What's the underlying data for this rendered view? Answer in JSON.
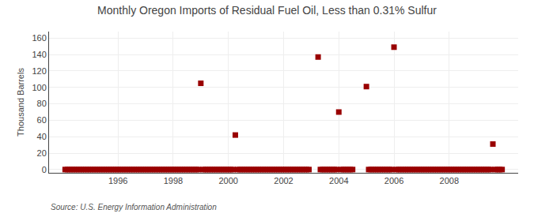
{
  "chart_data": {
    "type": "scatter",
    "title": "Monthly Oregon Imports of Residual Fuel Oil, Less than 0.31% Sulfur",
    "ylabel": "Thousand Barrels",
    "annotations": [
      "Source: U.S. Energy Information Administration"
    ],
    "color": "#990000",
    "marker": "square",
    "grid": true,
    "xlim": [
      1993.5,
      2010.5
    ],
    "ylim": [
      -4,
      168
    ],
    "xticks": [
      1996,
      1998,
      2000,
      2002,
      2004,
      2006,
      2008
    ],
    "yticks": [
      0,
      20,
      40,
      60,
      80,
      100,
      120,
      140,
      160
    ],
    "x": [
      1994.083,
      1994.167,
      1994.25,
      1994.333,
      1994.417,
      1994.5,
      1994.583,
      1994.667,
      1994.75,
      1994.833,
      1994.917,
      1995.0,
      1995.083,
      1995.167,
      1995.25,
      1995.333,
      1995.417,
      1995.5,
      1995.583,
      1995.667,
      1995.75,
      1995.833,
      1995.917,
      1996.0,
      1996.083,
      1996.167,
      1996.25,
      1996.333,
      1996.417,
      1996.5,
      1996.583,
      1996.667,
      1996.75,
      1996.833,
      1996.917,
      1997.0,
      1997.083,
      1997.167,
      1997.25,
      1997.333,
      1997.417,
      1997.5,
      1997.583,
      1997.667,
      1997.75,
      1997.833,
      1997.917,
      1998.0,
      1998.083,
      1998.167,
      1998.25,
      1998.333,
      1998.417,
      1998.5,
      1998.583,
      1998.667,
      1998.75,
      1998.833,
      1998.917,
      1999.0,
      1999.083,
      1999.167,
      1999.25,
      1999.333,
      1999.417,
      1999.5,
      1999.583,
      1999.667,
      1999.75,
      1999.833,
      1999.917,
      2000.0,
      2000.083,
      2000.167,
      2000.25,
      2000.333,
      2000.417,
      2000.5,
      2000.583,
      2000.667,
      2000.75,
      2000.833,
      2000.917,
      2001.0,
      2001.083,
      2001.167,
      2001.25,
      2001.333,
      2001.417,
      2001.5,
      2001.583,
      2001.667,
      2001.75,
      2001.833,
      2001.917,
      2002.0,
      2002.083,
      2002.167,
      2002.25,
      2002.333,
      2002.417,
      2002.5,
      2002.583,
      2002.667,
      2002.75,
      2002.833,
      2002.917,
      2003.25,
      2003.333,
      2003.417,
      2003.5,
      2003.583,
      2003.667,
      2003.75,
      2003.833,
      2003.917,
      2004.0,
      2004.083,
      2004.167,
      2004.25,
      2004.333,
      2004.417,
      2004.5,
      2005.0,
      2005.083,
      2005.167,
      2005.25,
      2005.333,
      2005.417,
      2005.5,
      2005.583,
      2005.667,
      2005.75,
      2005.833,
      2005.917,
      2006.0,
      2006.083,
      2006.167,
      2006.25,
      2006.333,
      2006.417,
      2006.5,
      2006.583,
      2006.667,
      2006.75,
      2006.833,
      2006.917,
      2007.0,
      2007.083,
      2007.167,
      2007.25,
      2007.333,
      2007.417,
      2007.5,
      2007.583,
      2007.667,
      2007.75,
      2007.833,
      2007.917,
      2008.0,
      2008.083,
      2008.167,
      2008.25,
      2008.333,
      2008.417,
      2008.5,
      2008.583,
      2008.667,
      2008.75,
      2008.833,
      2008.917,
      2009.0,
      2009.083,
      2009.167,
      2009.25,
      2009.333,
      2009.417,
      2009.5,
      2009.583,
      2009.667,
      2009.75,
      2009.833,
      2009.917
    ],
    "values": [
      0,
      0,
      0,
      0,
      0,
      0,
      0,
      0,
      0,
      0,
      0,
      0,
      0,
      0,
      0,
      0,
      0,
      0,
      0,
      0,
      0,
      0,
      0,
      0,
      0,
      0,
      0,
      0,
      0,
      0,
      0,
      0,
      0,
      0,
      0,
      0,
      0,
      0,
      0,
      0,
      0,
      0,
      0,
      0,
      0,
      0,
      0,
      0,
      0,
      0,
      0,
      0,
      0,
      0,
      0,
      0,
      0,
      0,
      0,
      105,
      0,
      0,
      0,
      0,
      0,
      0,
      0,
      0,
      0,
      0,
      0,
      0,
      0,
      0,
      42,
      0,
      0,
      0,
      0,
      0,
      0,
      0,
      0,
      0,
      0,
      0,
      0,
      0,
      0,
      0,
      0,
      0,
      0,
      0,
      0,
      0,
      0,
      0,
      0,
      0,
      0,
      0,
      0,
      0,
      0,
      0,
      0,
      137,
      0,
      0,
      0,
      0,
      0,
      0,
      0,
      0,
      70,
      0,
      0,
      0,
      0,
      0,
      0,
      101,
      0,
      0,
      0,
      0,
      0,
      0,
      0,
      0,
      0,
      0,
      0,
      149,
      0,
      0,
      0,
      0,
      0,
      0,
      0,
      0,
      0,
      0,
      0,
      0,
      0,
      0,
      0,
      0,
      0,
      0,
      0,
      0,
      0,
      0,
      0,
      0,
      0,
      0,
      0,
      0,
      0,
      0,
      0,
      0,
      0,
      0,
      0,
      0,
      0,
      0,
      0,
      0,
      0,
      0,
      31,
      0,
      0,
      0,
      0
    ]
  }
}
